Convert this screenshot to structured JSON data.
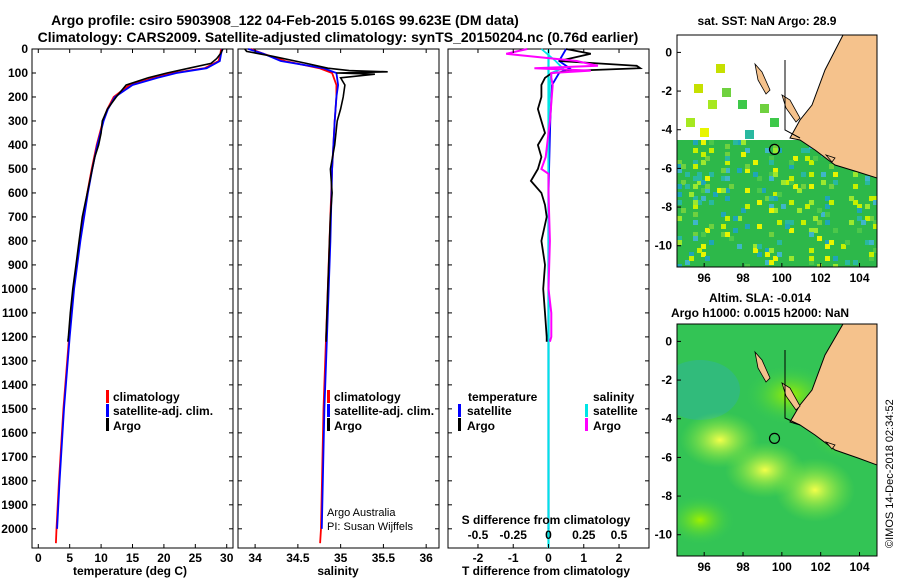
{
  "header": {
    "title_line1": "Argo profile: csiro 5903908_122 04-Feb-2015 5.016S 99.623E (DM data)",
    "title_line2": "Climatology: CARS2009. Satellite-adjusted climatology: synTS_20150204.nc (0.76d earlier)"
  },
  "colors": {
    "climatology": "#ff0000",
    "satellite": "#0000ff",
    "argo": "#000000",
    "sat_salinity": "#00e5e5",
    "argo_salinity": "#ff00ff",
    "land": "#f5c28c"
  },
  "depth_axis": {
    "ticks": [
      "0",
      "100",
      "200",
      "300",
      "400",
      "500",
      "600",
      "700",
      "800",
      "900",
      "1000",
      "1100",
      "1200",
      "1300",
      "1400",
      "1500",
      "1600",
      "1700",
      "1800",
      "1900",
      "2000"
    ]
  },
  "chart_data": [
    {
      "type": "line",
      "name": "temperature",
      "xlabel": "temperature (deg C)",
      "xlim": [
        -1,
        31
      ],
      "ylim": [
        0,
        2080
      ],
      "xticks": [
        0,
        5,
        10,
        15,
        20,
        25,
        30
      ],
      "xtick_labels": [
        "0",
        "5",
        "10",
        "15",
        "20",
        "25",
        "30"
      ],
      "legend": [
        "climatology",
        "satellite-adj. clim.",
        "Argo"
      ],
      "series": [
        {
          "name": "climatology",
          "depth": [
            0,
            20,
            50,
            80,
            100,
            120,
            150,
            200,
            250,
            300,
            400,
            500,
            600,
            800,
            1000,
            1200,
            1500,
            1800,
            2000,
            2060
          ],
          "values": [
            29.1,
            29.0,
            28.7,
            26.5,
            21.5,
            18.5,
            14.5,
            12.0,
            11.0,
            10.3,
            9.3,
            8.5,
            7.8,
            6.6,
            5.6,
            4.9,
            4.0,
            3.3,
            2.9,
            2.8
          ]
        },
        {
          "name": "satellite-adj. clim.",
          "depth": [
            0,
            20,
            50,
            80,
            100,
            120,
            150,
            200,
            250,
            300,
            400,
            500,
            600,
            800,
            1000,
            1200,
            1500,
            1800,
            2000
          ],
          "values": [
            29.3,
            29.1,
            28.9,
            26.8,
            22.0,
            19.0,
            15.0,
            12.2,
            11.1,
            10.4,
            9.4,
            8.6,
            7.9,
            6.7,
            5.7,
            5.0,
            4.1,
            3.4,
            3.0
          ]
        },
        {
          "name": "Argo",
          "depth": [
            0,
            20,
            40,
            60,
            80,
            100,
            120,
            150,
            200,
            250,
            300,
            350,
            400,
            450,
            500,
            550,
            600,
            650,
            700,
            800,
            900,
            1000,
            1100,
            1200,
            1220
          ],
          "values": [
            29.4,
            29.0,
            28.4,
            27.5,
            24.0,
            20.5,
            17.5,
            14.0,
            12.4,
            11.0,
            10.2,
            10.0,
            9.6,
            9.0,
            8.6,
            8.2,
            7.8,
            7.4,
            7.0,
            6.5,
            6.0,
            5.5,
            5.1,
            4.8,
            4.7
          ]
        }
      ]
    },
    {
      "type": "line",
      "name": "salinity",
      "xlabel": "salinity",
      "xlim": [
        33.8,
        36.15
      ],
      "ylim": [
        0,
        2080
      ],
      "xticks": [
        34,
        34.5,
        35,
        35.5,
        36
      ],
      "xtick_labels": [
        "34",
        "34.5",
        "35",
        "35.5",
        "36"
      ],
      "legend": [
        "climatology",
        "satellite-adj. clim.",
        "Argo"
      ],
      "annotation": [
        "Argo Australia",
        "PI: Susan Wijffels"
      ],
      "series": [
        {
          "name": "climatology",
          "depth": [
            0,
            20,
            50,
            80,
            100,
            150,
            200,
            300,
            500,
            800,
            1000,
            1500,
            2000,
            2060
          ],
          "values": [
            33.95,
            34.1,
            34.35,
            34.75,
            34.9,
            34.95,
            34.95,
            34.93,
            34.9,
            34.87,
            34.85,
            34.8,
            34.77,
            34.76
          ]
        },
        {
          "name": "satellite-adj. clim.",
          "depth": [
            0,
            20,
            50,
            80,
            100,
            150,
            200,
            300,
            500,
            800,
            1000,
            1500,
            2000
          ],
          "values": [
            33.92,
            34.1,
            34.3,
            34.8,
            34.95,
            34.97,
            34.95,
            34.93,
            34.9,
            34.88,
            34.86,
            34.81,
            34.78
          ]
        },
        {
          "name": "Argo",
          "depth": [
            0,
            10,
            30,
            60,
            80,
            90,
            95,
            100,
            105,
            120,
            150,
            200,
            250,
            300,
            400,
            500,
            600,
            700,
            800,
            900,
            1000,
            1100,
            1200,
            1220
          ],
          "values": [
            33.88,
            33.9,
            34.2,
            34.6,
            34.85,
            35.1,
            35.55,
            34.95,
            35.4,
            35.0,
            35.05,
            35.03,
            35.0,
            34.96,
            34.93,
            34.88,
            34.9,
            34.88,
            34.87,
            34.86,
            34.85,
            34.84,
            34.83,
            34.83
          ]
        }
      ]
    },
    {
      "type": "line",
      "name": "differences",
      "xlabel_bottom": "T difference from climatology",
      "xlabel_top": "S difference from climatology",
      "xlim": [
        -2.85,
        2.85
      ],
      "ylim": [
        0,
        2080
      ],
      "xticks": [
        -2,
        -1,
        0,
        1,
        2
      ],
      "xtick_labels": [
        "-2",
        "-1",
        "0",
        "1",
        "2"
      ],
      "s_tick_labels": [
        "-0.5",
        "-0.25",
        "0",
        "0.25",
        "0.5"
      ],
      "legend_left_title": "temperature",
      "legend_right_title": "salinity",
      "legend_left": [
        "satellite",
        "Argo"
      ],
      "legend_right": [
        "satellite",
        "Argo"
      ],
      "series": [
        {
          "name": "T satellite",
          "depth": [
            0,
            50,
            80,
            100,
            150,
            300,
            600,
            1000,
            1500,
            2000
          ],
          "values": [
            0.5,
            0.3,
            0.6,
            0.3,
            0.1,
            0.05,
            0.0,
            0.0,
            0.0,
            0.0
          ]
        },
        {
          "name": "T Argo",
          "depth": [
            0,
            20,
            50,
            70,
            80,
            90,
            100,
            120,
            150,
            200,
            250,
            300,
            350,
            400,
            450,
            500,
            550,
            600,
            650,
            700,
            800,
            900,
            1000,
            1100,
            1200,
            1220
          ],
          "values": [
            0.5,
            1.2,
            0.3,
            2.5,
            2.6,
            0.8,
            0.1,
            -0.1,
            -0.2,
            -0.2,
            -0.3,
            -0.2,
            -0.1,
            -0.3,
            -0.2,
            -0.3,
            -0.5,
            -0.2,
            -0.1,
            -0.05,
            -0.2,
            -0.1,
            -0.15,
            -0.1,
            -0.05,
            -0.05
          ]
        },
        {
          "name": "S satellite",
          "depth": [
            0,
            50,
            80,
            100,
            150,
            300,
            600,
            1000,
            1500,
            2000
          ],
          "values": [
            -0.05,
            0.05,
            0.1,
            0.02,
            0.01,
            0.0,
            0.0,
            0.0,
            0.0,
            0.0
          ]
        },
        {
          "name": "S Argo",
          "depth": [
            0,
            20,
            50,
            70,
            80,
            90,
            100,
            120,
            150,
            300,
            450,
            500,
            520,
            600,
            800,
            1000,
            1100,
            1200,
            1220
          ],
          "values": [
            -0.15,
            -0.3,
            0.2,
            0.35,
            -0.1,
            0.3,
            0.02,
            0.02,
            0.03,
            0.01,
            -0.02,
            -0.05,
            0.0,
            0.0,
            0.01,
            0.0,
            0.02,
            0.02,
            0.01
          ]
        }
      ]
    },
    {
      "type": "heatmap",
      "name": "sst_map",
      "title": "sat. SST: NaN Argo: 28.9",
      "xlim": [
        94.6,
        104.9
      ],
      "ylim": [
        -11.1,
        0.9
      ],
      "xtick_labels": [
        "96",
        "98",
        "100",
        "102",
        "104"
      ],
      "ytick_labels": [
        "0",
        "-2",
        "-4",
        "-6",
        "-8",
        "-10"
      ],
      "argo_position": [
        99.623,
        -5.016
      ]
    },
    {
      "type": "heatmap",
      "name": "sla_map",
      "title_line1": "Altim. SLA: -0.014",
      "title_line2": "Argo h1000: 0.0015 h2000: NaN",
      "xlim": [
        94.6,
        104.9
      ],
      "ylim": [
        -11.1,
        0.9
      ],
      "xtick_labels": [
        "96",
        "98",
        "100",
        "102",
        "104"
      ],
      "ytick_labels": [
        "0",
        "-2",
        "-4",
        "-6",
        "-8",
        "-10"
      ],
      "argo_position": [
        99.623,
        -5.016
      ]
    }
  ],
  "footer": {
    "credit": "©IMOS 14-Dec-2018 02:34:52"
  }
}
